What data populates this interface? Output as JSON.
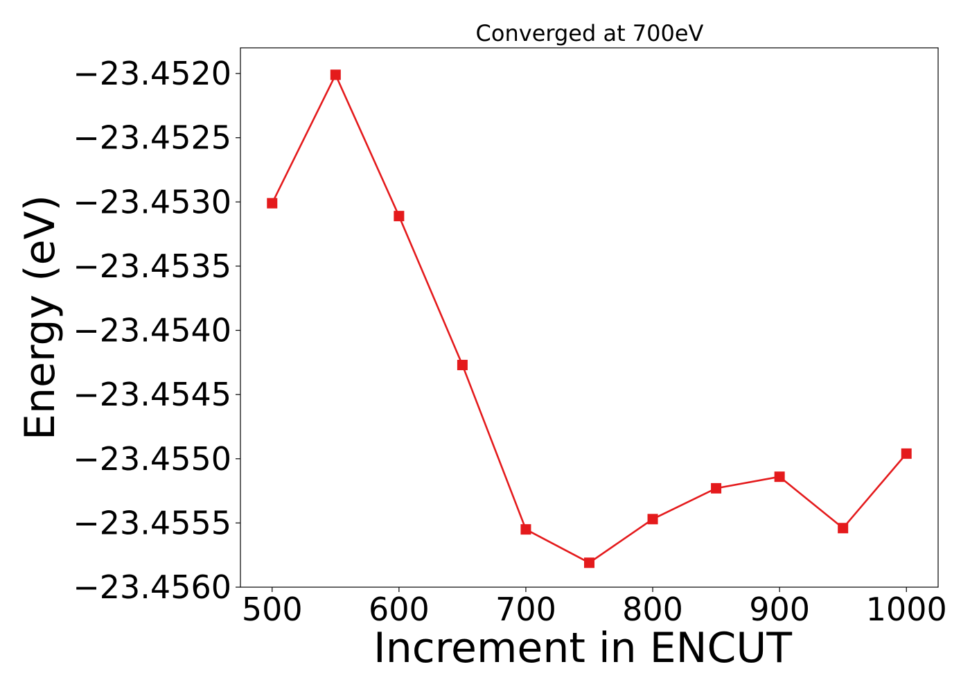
{
  "chart_data": {
    "type": "line",
    "title": "Converged at 700eV",
    "xlabel": "Increment in ENCUT",
    "ylabel": "Energy (eV)",
    "xlim": [
      475,
      1025
    ],
    "ylim": [
      -23.456,
      -23.4518
    ],
    "xticks": [
      500,
      600,
      700,
      800,
      900,
      1000
    ],
    "xtick_labels": [
      "500",
      "600",
      "700",
      "800",
      "900",
      "1000"
    ],
    "yticks": [
      -23.452,
      -23.4525,
      -23.453,
      -23.4535,
      -23.454,
      -23.4545,
      -23.455,
      -23.4555,
      -23.456
    ],
    "ytick_labels": [
      "−23.4520",
      "−23.4525",
      "−23.4530",
      "−23.4535",
      "−23.4540",
      "−23.4545",
      "−23.4550",
      "−23.4555",
      "−23.4560"
    ],
    "grid": false,
    "series": [
      {
        "color": "#e41a1c",
        "marker": "square",
        "x": [
          500,
          550,
          600,
          650,
          700,
          750,
          800,
          850,
          900,
          950,
          1000
        ],
        "y": [
          -23.45301,
          -23.45201,
          -23.45311,
          -23.45427,
          -23.45555,
          -23.45581,
          -23.45547,
          -23.45523,
          -23.45514,
          -23.45554,
          -23.45496
        ]
      }
    ]
  }
}
